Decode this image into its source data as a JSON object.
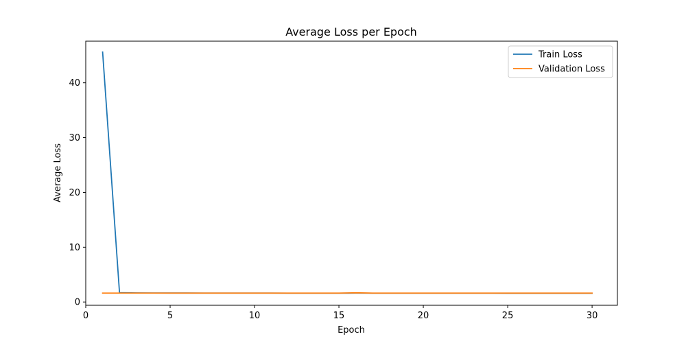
{
  "chart_data": {
    "type": "line",
    "title": "Average Loss per Epoch",
    "xlabel": "Epoch",
    "ylabel": "Average Loss",
    "xlim": [
      0,
      31.5
    ],
    "ylim": [
      -0.6,
      47.6
    ],
    "xticks": [
      0,
      5,
      10,
      15,
      20,
      25,
      30
    ],
    "yticks": [
      0,
      10,
      20,
      30,
      40
    ],
    "grid": false,
    "legend_position": "top-right",
    "x": [
      1,
      2,
      3,
      4,
      5,
      6,
      7,
      8,
      9,
      10,
      11,
      12,
      13,
      14,
      15,
      16,
      17,
      18,
      19,
      20,
      21,
      22,
      23,
      24,
      25,
      26,
      27,
      28,
      29,
      30
    ],
    "series": [
      {
        "name": "Train Loss",
        "color": "#1f77b4",
        "values": [
          45.6,
          1.7,
          1.65,
          1.64,
          1.63,
          1.63,
          1.62,
          1.62,
          1.62,
          1.62,
          1.62,
          1.61,
          1.61,
          1.61,
          1.61,
          1.62,
          1.61,
          1.61,
          1.61,
          1.61,
          1.61,
          1.61,
          1.61,
          1.61,
          1.6,
          1.6,
          1.6,
          1.6,
          1.6,
          1.6
        ]
      },
      {
        "name": "Validation Loss",
        "color": "#ff7f0e",
        "values": [
          1.62,
          1.62,
          1.62,
          1.62,
          1.62,
          1.62,
          1.62,
          1.62,
          1.62,
          1.62,
          1.62,
          1.62,
          1.62,
          1.62,
          1.62,
          1.68,
          1.62,
          1.62,
          1.62,
          1.62,
          1.62,
          1.62,
          1.62,
          1.62,
          1.62,
          1.62,
          1.62,
          1.62,
          1.62,
          1.62
        ]
      }
    ]
  }
}
